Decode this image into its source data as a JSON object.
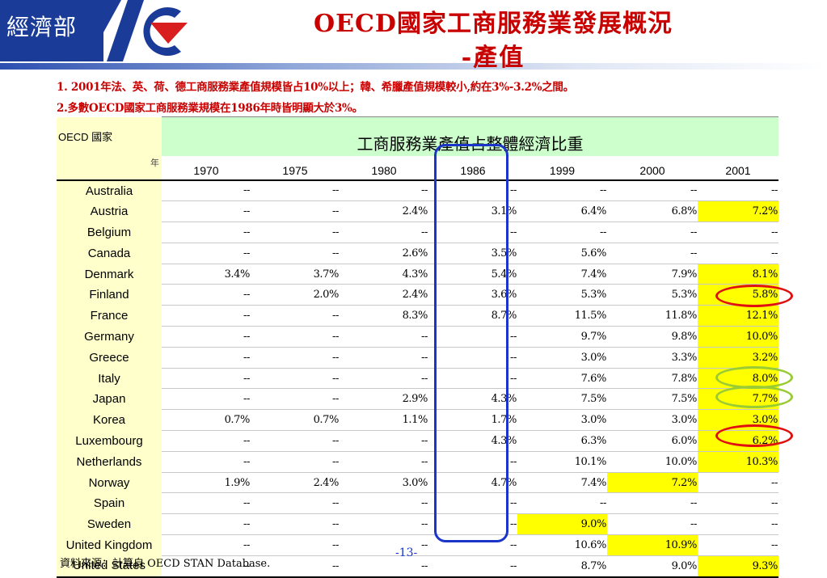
{
  "header": {
    "logo_text": "經濟部",
    "title_line1": "OECD國家工商服務業發展概況",
    "title_line2": "-產值"
  },
  "notes": [
    "1. 2001年法、英、荷、德工商服務業產值規模皆占10%以上；韓、希臘產值規模較小,約在3%-3.2%之間。",
    "2.多數OECD國家工商服務業規模在1986年時皆明顯大於3%。"
  ],
  "table": {
    "corner_label": "OECD 國家",
    "year_corner_label": "年",
    "banner": "工商服務業產值占整體經濟比重",
    "years": [
      "1970",
      "1975",
      "1980",
      "1986",
      "1999",
      "2000",
      "2001"
    ],
    "rows": [
      {
        "country": "Australia",
        "values": [
          "--",
          "--",
          "--",
          "--",
          "--",
          "--",
          "--"
        ],
        "highlight": []
      },
      {
        "country": "Austria",
        "values": [
          "--",
          "--",
          "2.4%",
          "3.1%",
          "6.4%",
          "6.8%",
          "7.2%"
        ],
        "highlight": [
          6
        ]
      },
      {
        "country": "Belgium",
        "values": [
          "--",
          "--",
          "--",
          "--",
          "--",
          "--",
          "--"
        ],
        "highlight": []
      },
      {
        "country": "Canada",
        "values": [
          "--",
          "--",
          "2.6%",
          "3.5%",
          "5.6%",
          "--",
          "--"
        ],
        "highlight": []
      },
      {
        "country": "Denmark",
        "values": [
          "3.4%",
          "3.7%",
          "4.3%",
          "5.4%",
          "7.4%",
          "7.9%",
          "8.1%"
        ],
        "highlight": [
          6
        ]
      },
      {
        "country": "Finland",
        "values": [
          "--",
          "2.0%",
          "2.4%",
          "3.6%",
          "5.3%",
          "5.3%",
          "5.8%"
        ],
        "highlight": [
          6
        ]
      },
      {
        "country": "France",
        "values": [
          "--",
          "--",
          "8.3%",
          "8.7%",
          "11.5%",
          "11.8%",
          "12.1%"
        ],
        "highlight": [
          6
        ]
      },
      {
        "country": "Germany",
        "values": [
          "--",
          "--",
          "--",
          "--",
          "9.7%",
          "9.8%",
          "10.0%"
        ],
        "highlight": [
          6
        ]
      },
      {
        "country": "Greece",
        "values": [
          "--",
          "--",
          "--",
          "--",
          "3.0%",
          "3.3%",
          "3.2%"
        ],
        "highlight": [
          6
        ]
      },
      {
        "country": "Italy",
        "values": [
          "--",
          "--",
          "--",
          "--",
          "7.6%",
          "7.8%",
          "8.0%"
        ],
        "highlight": [
          6
        ]
      },
      {
        "country": "Japan",
        "values": [
          "--",
          "--",
          "2.9%",
          "4.3%",
          "7.5%",
          "7.5%",
          "7.7%"
        ],
        "highlight": [
          6
        ]
      },
      {
        "country": "Korea",
        "values": [
          "0.7%",
          "0.7%",
          "1.1%",
          "1.7%",
          "3.0%",
          "3.0%",
          "3.0%"
        ],
        "highlight": [
          6
        ]
      },
      {
        "country": "Luxembourg",
        "values": [
          "--",
          "--",
          "--",
          "4.3%",
          "6.3%",
          "6.0%",
          "6.2%"
        ],
        "highlight": [
          6
        ]
      },
      {
        "country": "Netherlands",
        "values": [
          "--",
          "--",
          "--",
          "--",
          "10.1%",
          "10.0%",
          "10.3%"
        ],
        "highlight": [
          6
        ]
      },
      {
        "country": "Norway",
        "values": [
          "1.9%",
          "2.4%",
          "3.0%",
          "4.7%",
          "7.4%",
          "7.2%",
          "--"
        ],
        "highlight": [
          5
        ]
      },
      {
        "country": "Spain",
        "values": [
          "--",
          "--",
          "--",
          "--",
          "--",
          "--",
          "--"
        ],
        "highlight": []
      },
      {
        "country": "Sweden",
        "values": [
          "--",
          "--",
          "--",
          "--",
          "9.0%",
          "--",
          "--"
        ],
        "highlight": [
          4
        ]
      },
      {
        "country": "United Kingdom",
        "values": [
          "--",
          "--",
          "--",
          "--",
          "10.6%",
          "10.9%",
          "--"
        ],
        "highlight": [
          5
        ]
      },
      {
        "country": "United States",
        "values": [
          "--",
          "--",
          "--",
          "--",
          "8.7%",
          "9.0%",
          "9.3%"
        ],
        "highlight": [
          6
        ]
      }
    ]
  },
  "annotations": {
    "box_color": "#1a35c8",
    "ring_red_color": "#e01010",
    "ring_green_color": "#99cc33",
    "highlight_color": "#ffff00",
    "country_fill": "#ffffcc",
    "banner_fill": "#ccffcc"
  },
  "footer": {
    "source": "資料來源：計算自 OECD STAN Database.",
    "page_number": "-13-"
  }
}
